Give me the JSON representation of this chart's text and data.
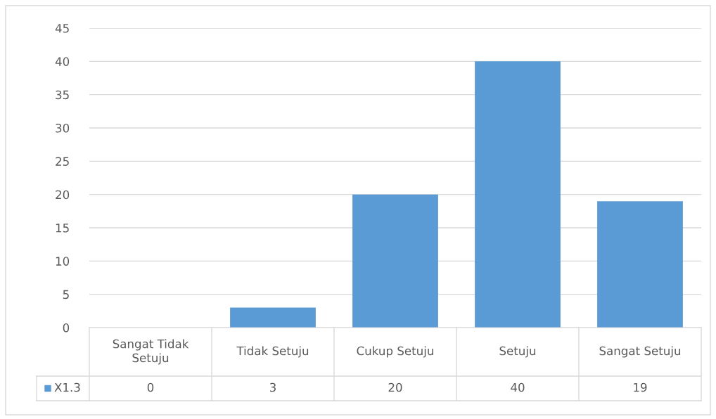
{
  "chart_data": {
    "type": "bar",
    "categories": [
      "Sangat Tidak Setuju",
      "Tidak Setuju",
      "Cukup Setuju",
      "Setuju",
      "Sangat Setuju"
    ],
    "series": [
      {
        "name": "X1.3",
        "color": "#5b9bd5",
        "values": [
          0,
          3,
          20,
          40,
          19
        ]
      }
    ],
    "ylim": [
      0,
      45
    ],
    "yticks": [
      0,
      5,
      10,
      15,
      20,
      25,
      30,
      35,
      40,
      45
    ],
    "grid": "y",
    "legend": "bottom",
    "data_labels": true
  }
}
